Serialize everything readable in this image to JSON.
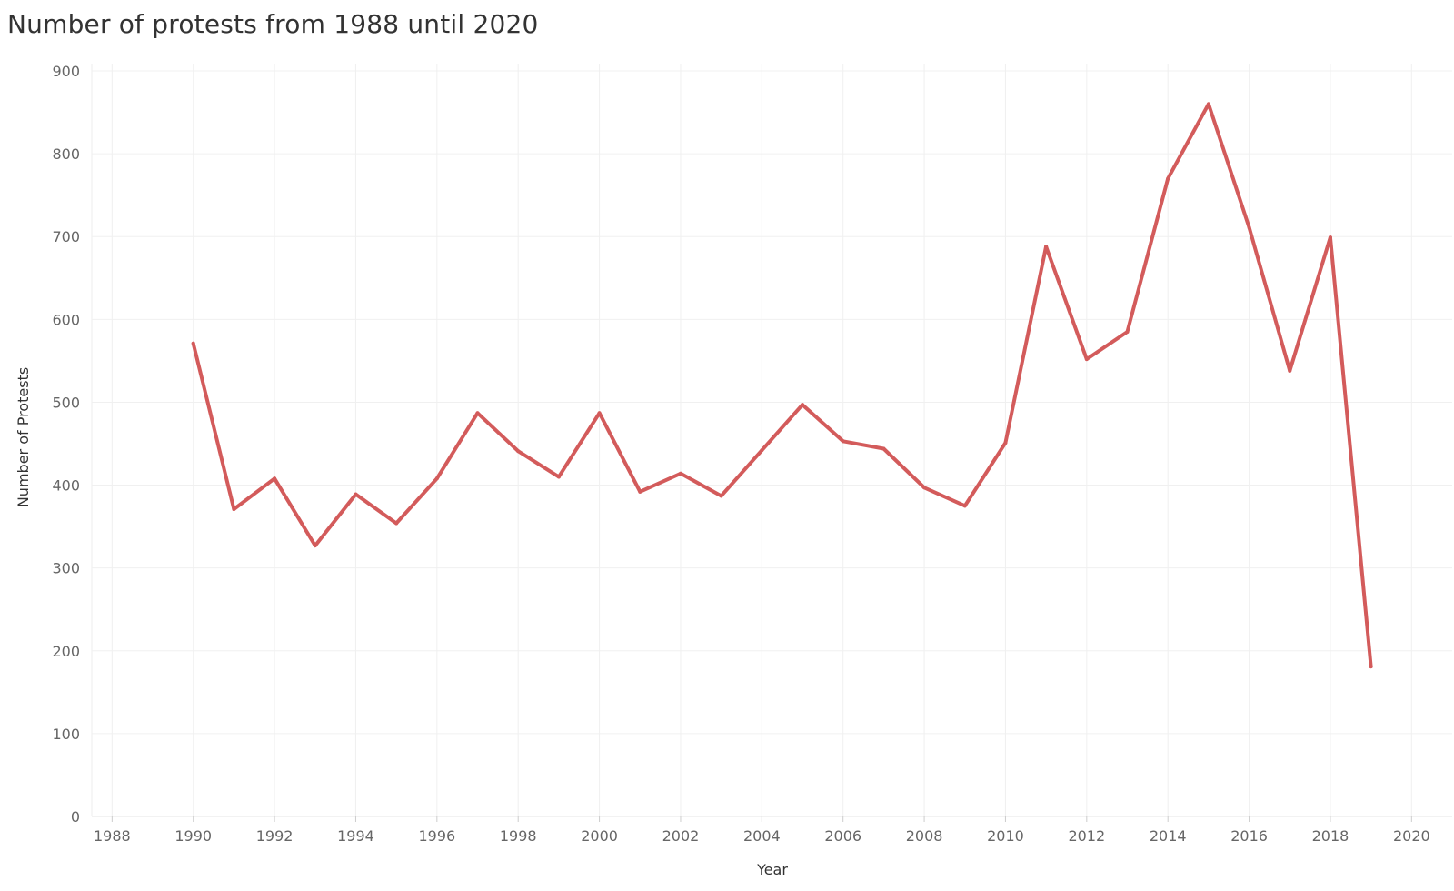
{
  "chart_data": {
    "type": "line",
    "title": "Number of protests from 1988 until 2020",
    "xlabel": "Year",
    "ylabel": "Number of Protests",
    "xlim": [
      1987.5,
      2021
    ],
    "ylim": [
      0,
      900
    ],
    "xticks": [
      1988,
      1990,
      1992,
      1994,
      1996,
      1998,
      2000,
      2002,
      2004,
      2006,
      2008,
      2010,
      2012,
      2014,
      2016,
      2018,
      2020
    ],
    "yticks": [
      0,
      100,
      200,
      300,
      400,
      500,
      600,
      700,
      800,
      900
    ],
    "grid": true,
    "series": [
      {
        "color": "#d35b5b",
        "x": [
          1990,
          1991,
          1992,
          1993,
          1994,
          1995,
          1996,
          1997,
          1998,
          1999,
          2000,
          2001,
          2002,
          2003,
          2004,
          2005,
          2006,
          2007,
          2008,
          2009,
          2010,
          2011,
          2012,
          2013,
          2014,
          2015,
          2016,
          2017,
          2018,
          2019
        ],
        "values": [
          571,
          371,
          408,
          327,
          389,
          354,
          408,
          487,
          441,
          410,
          487,
          392,
          414,
          387,
          442,
          497,
          453,
          444,
          397,
          375,
          451,
          688,
          552,
          585,
          770,
          860,
          711,
          538,
          699,
          181
        ]
      }
    ]
  }
}
